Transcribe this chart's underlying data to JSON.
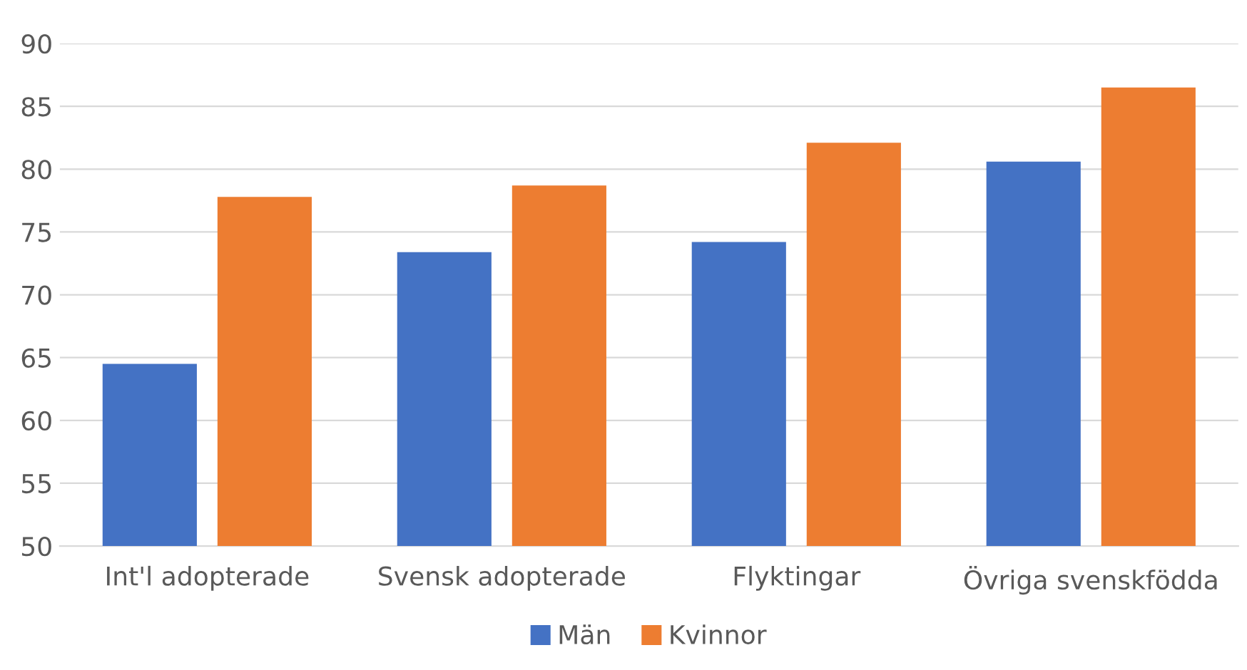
{
  "chart_data": {
    "type": "bar",
    "categories": [
      "Int'l adopterade",
      "Svensk adopterade",
      "Flyktingar",
      "Övriga svenskfödda"
    ],
    "series": [
      {
        "name": "Män",
        "color": "#4472c4",
        "values": [
          64.5,
          73.4,
          74.2,
          80.6
        ]
      },
      {
        "name": "Kvinnor",
        "color": "#ed7d31",
        "values": [
          77.8,
          78.7,
          82.1,
          86.5
        ]
      }
    ],
    "ylim": [
      50,
      90
    ],
    "yticks": [
      50,
      55,
      60,
      65,
      70,
      75,
      80,
      85,
      90
    ],
    "grid": "y",
    "legend": "bottom"
  }
}
